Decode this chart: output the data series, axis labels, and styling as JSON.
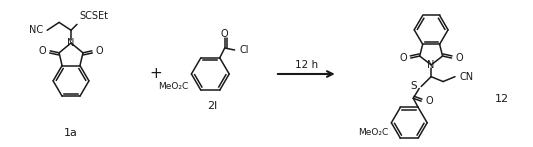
{
  "bg_color": "#ffffff",
  "line_color": "#1a1a1a",
  "fig_width": 5.33,
  "fig_height": 1.47,
  "dpi": 100,
  "label_1a": "1a",
  "label_2l": "2l",
  "label_12": "12",
  "label_plus": "+",
  "label_arrow": "12 h",
  "text_NC": "NC",
  "text_SCSEt": "SCSEt",
  "text_S": "S",
  "text_O": "O",
  "text_N": "N",
  "text_Cl": "Cl",
  "text_CN": "CN",
  "text_MeO2C": "MeO₂C"
}
